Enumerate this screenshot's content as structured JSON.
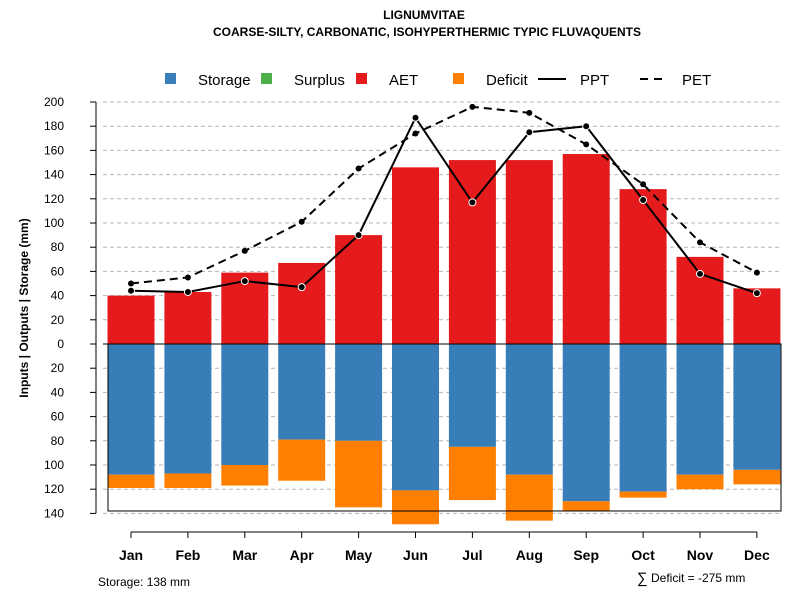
{
  "chart_data": {
    "type": "bar",
    "title": "LIGNUMVITAE",
    "subtitle": "COARSE-SILTY, CARBONATIC, ISOHYPERTHERMIC TYPIC FLUVAQUENTS",
    "ylabel": "Inputs | Outputs | Storage    (mm)",
    "categories": [
      "Jan",
      "Feb",
      "Mar",
      "Apr",
      "May",
      "Jun",
      "Jul",
      "Aug",
      "Sep",
      "Oct",
      "Nov",
      "Dec"
    ],
    "y_ticks_upper": [
      0,
      20,
      40,
      60,
      80,
      100,
      120,
      140,
      160,
      180,
      200
    ],
    "y_ticks_lower": [
      20,
      40,
      60,
      80,
      100,
      120,
      140
    ],
    "ylim": [
      -140,
      200
    ],
    "grid": true,
    "legend_position": "top",
    "legend": [
      {
        "key": "storage",
        "label": "Storage",
        "kind": "square",
        "color": "#377EB8"
      },
      {
        "key": "surplus",
        "label": "Surplus",
        "kind": "square",
        "color": "#4DAF4A"
      },
      {
        "key": "aet",
        "label": "AET",
        "kind": "square",
        "color": "#E41A1C"
      },
      {
        "key": "deficit",
        "label": "Deficit",
        "kind": "square",
        "color": "#FF7F00"
      },
      {
        "key": "ppt",
        "label": "PPT",
        "kind": "solid-line",
        "color": "#000000"
      },
      {
        "key": "pet",
        "label": "PET",
        "kind": "dashed-line",
        "color": "#000000"
      }
    ],
    "series": [
      {
        "name": "AET",
        "values": [
          40,
          43,
          59,
          67,
          90,
          146,
          152,
          152,
          157,
          128,
          72,
          46
        ]
      },
      {
        "name": "Storage",
        "values": [
          108,
          107,
          100,
          79,
          80,
          121,
          85,
          108,
          130,
          122,
          108,
          104
        ]
      },
      {
        "name": "Deficit",
        "values": [
          11,
          12,
          17,
          34,
          55,
          28,
          44,
          38,
          8,
          5,
          12,
          12
        ]
      },
      {
        "name": "PPT",
        "values": [
          44,
          43,
          52,
          47,
          90,
          187,
          117,
          175,
          180,
          119,
          58,
          42
        ]
      },
      {
        "name": "PET",
        "values": [
          50,
          55,
          77,
          101,
          145,
          174,
          196,
          191,
          165,
          132,
          84,
          59
        ]
      }
    ],
    "storage_capacity": 138,
    "footnote_left": "Storage: 138 mm",
    "footnote_right": "Deficit = -275 mm",
    "sigma_symbol": "∑"
  }
}
